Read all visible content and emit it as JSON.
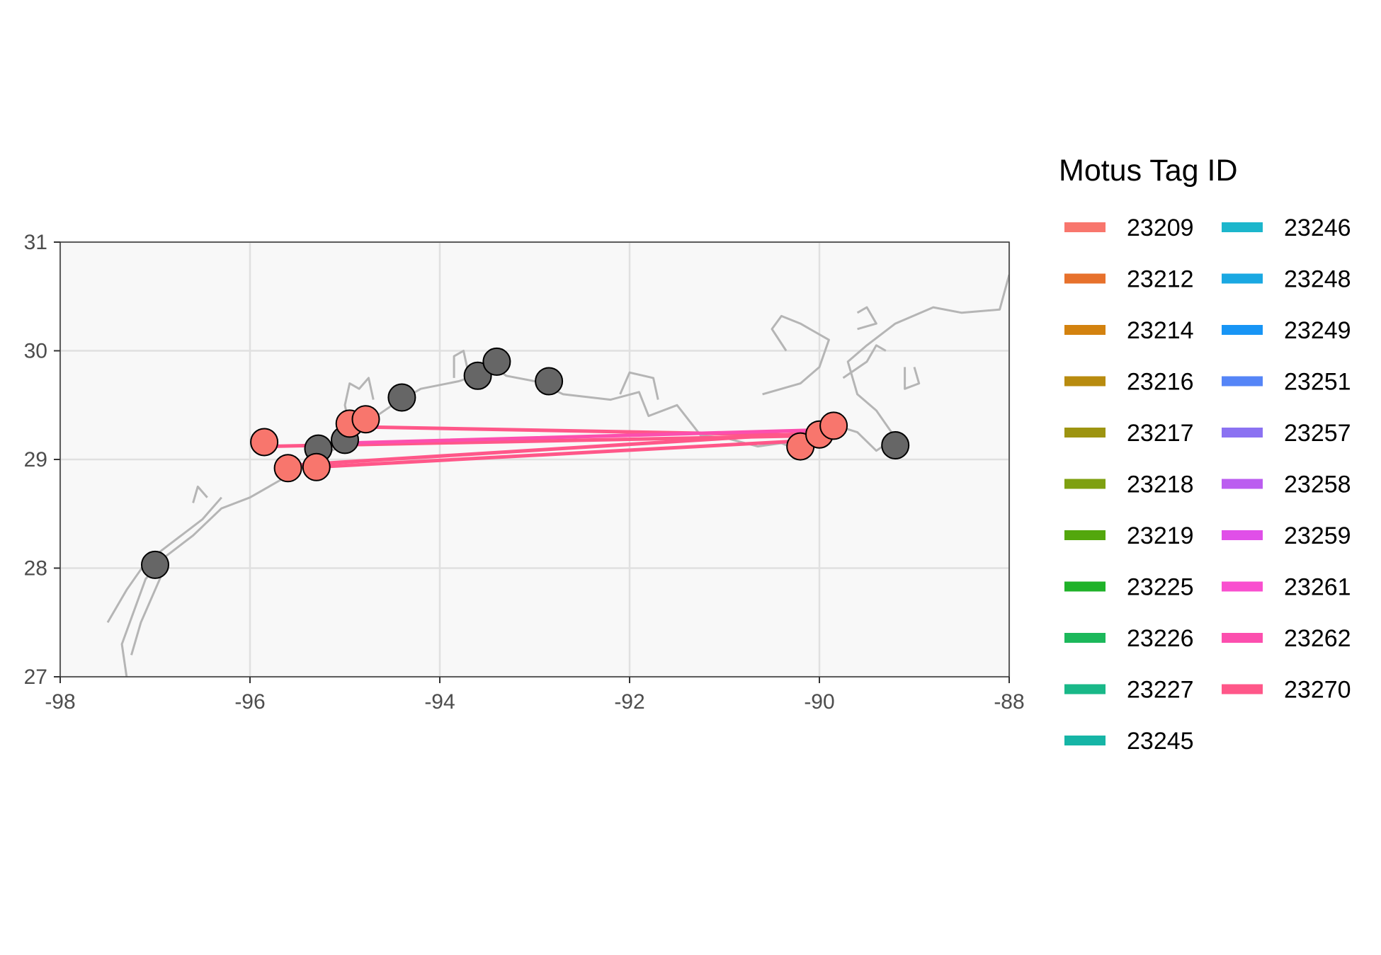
{
  "chart_data": {
    "type": "map",
    "xlim": [
      -98,
      -88
    ],
    "ylim": [
      27,
      31
    ],
    "x_ticks": [
      "-98",
      "-96",
      "-94",
      "-92",
      "-90",
      "-88"
    ],
    "y_ticks": [
      "27",
      "28",
      "29",
      "30",
      "31"
    ],
    "x_tick_values": [
      -98,
      -96,
      -94,
      -92,
      -90,
      -88
    ],
    "y_tick_values": [
      27,
      28,
      29,
      30,
      31
    ],
    "grid": true,
    "legend_position": "right",
    "colors": {
      "panel_background": "#f8f8f8",
      "gridline": "#e0e0e0",
      "coastline": "#b5b5b5",
      "station": "#666666",
      "detection": "#f8766d",
      "track": "#ff5789"
    },
    "coastline": [
      [
        [
          -97.3,
          26.0
        ],
        [
          -97.25,
          26.6
        ],
        [
          -97.3,
          27.0
        ],
        [
          -97.35,
          27.3
        ],
        [
          -97.1,
          27.9
        ],
        [
          -96.9,
          28.1
        ],
        [
          -96.6,
          28.3
        ],
        [
          -96.3,
          28.55
        ],
        [
          -96.0,
          28.65
        ],
        [
          -95.6,
          28.85
        ],
        [
          -95.3,
          29.0
        ],
        [
          -95.0,
          29.15
        ],
        [
          -94.75,
          29.35
        ],
        [
          -94.5,
          29.5
        ],
        [
          -94.2,
          29.65
        ],
        [
          -93.8,
          29.72
        ],
        [
          -93.6,
          29.78
        ],
        [
          -93.5,
          29.9
        ],
        [
          -93.3,
          29.77
        ],
        [
          -93.0,
          29.72
        ],
        [
          -92.7,
          29.6
        ],
        [
          -92.2,
          29.55
        ],
        [
          -91.9,
          29.62
        ],
        [
          -91.8,
          29.4
        ],
        [
          -91.5,
          29.5
        ],
        [
          -91.25,
          29.22
        ],
        [
          -91.0,
          29.2
        ],
        [
          -90.65,
          29.12
        ],
        [
          -90.4,
          29.15
        ],
        [
          -90.2,
          29.08
        ],
        [
          -90.05,
          29.28
        ],
        [
          -89.85,
          29.32
        ],
        [
          -89.6,
          29.25
        ],
        [
          -89.4,
          29.08
        ],
        [
          -89.2,
          29.2
        ],
        [
          -89.4,
          29.45
        ],
        [
          -89.6,
          29.6
        ],
        [
          -89.7,
          29.9
        ],
        [
          -89.5,
          30.05
        ],
        [
          -89.2,
          30.25
        ],
        [
          -88.8,
          30.4
        ],
        [
          -88.5,
          30.35
        ],
        [
          -88.1,
          30.38
        ],
        [
          -88.0,
          30.7
        ]
      ],
      [
        [
          -97.5,
          27.5
        ],
        [
          -97.3,
          27.8
        ],
        [
          -97.1,
          28.05
        ],
        [
          -96.8,
          28.25
        ],
        [
          -96.5,
          28.45
        ],
        [
          -96.3,
          28.65
        ]
      ],
      [
        [
          -97.25,
          27.2
        ],
        [
          -97.15,
          27.5
        ],
        [
          -97.0,
          27.8
        ],
        [
          -96.9,
          28.0
        ]
      ],
      [
        [
          -96.6,
          28.6
        ],
        [
          -96.55,
          28.75
        ],
        [
          -96.45,
          28.65
        ]
      ],
      [
        [
          -95.2,
          29.05
        ],
        [
          -95.05,
          29.2
        ],
        [
          -94.95,
          29.3
        ],
        [
          -95.0,
          29.5
        ],
        [
          -94.95,
          29.7
        ],
        [
          -94.85,
          29.65
        ],
        [
          -94.75,
          29.75
        ],
        [
          -94.7,
          29.55
        ]
      ],
      [
        [
          -93.85,
          29.75
        ],
        [
          -93.85,
          29.95
        ],
        [
          -93.75,
          30.0
        ],
        [
          -93.7,
          29.8
        ]
      ],
      [
        [
          -92.1,
          29.6
        ],
        [
          -92.0,
          29.8
        ],
        [
          -91.75,
          29.75
        ],
        [
          -91.7,
          29.55
        ]
      ],
      [
        [
          -90.6,
          29.6
        ],
        [
          -90.2,
          29.7
        ],
        [
          -90.0,
          29.85
        ],
        [
          -89.9,
          30.1
        ],
        [
          -90.2,
          30.25
        ],
        [
          -90.4,
          30.32
        ],
        [
          -90.5,
          30.2
        ],
        [
          -90.35,
          30.0
        ]
      ],
      [
        [
          -89.75,
          29.75
        ],
        [
          -89.5,
          29.9
        ],
        [
          -89.4,
          30.05
        ],
        [
          -89.3,
          30.0
        ]
      ],
      [
        [
          -89.0,
          29.85
        ],
        [
          -88.95,
          29.7
        ],
        [
          -89.1,
          29.65
        ],
        [
          -89.1,
          29.85
        ]
      ],
      [
        [
          -89.6,
          30.2
        ],
        [
          -89.4,
          30.25
        ],
        [
          -89.5,
          30.4
        ],
        [
          -89.6,
          30.35
        ]
      ]
    ],
    "stations": [
      {
        "lon": -97.0,
        "lat": 28.03
      },
      {
        "lon": -95.28,
        "lat": 29.1
      },
      {
        "lon": -95.0,
        "lat": 29.18
      },
      {
        "lon": -94.4,
        "lat": 29.57
      },
      {
        "lon": -93.6,
        "lat": 29.77
      },
      {
        "lon": -93.4,
        "lat": 29.9
      },
      {
        "lon": -92.85,
        "lat": 29.72
      },
      {
        "lon": -89.2,
        "lat": 29.13
      }
    ],
    "detections": [
      {
        "lon": -95.85,
        "lat": 29.16
      },
      {
        "lon": -95.6,
        "lat": 28.92
      },
      {
        "lon": -95.3,
        "lat": 28.93
      },
      {
        "lon": -94.95,
        "lat": 29.33
      },
      {
        "lon": -94.78,
        "lat": 29.37
      },
      {
        "lon": -90.2,
        "lat": 29.12
      },
      {
        "lon": -90.0,
        "lat": 29.23
      },
      {
        "lon": -89.85,
        "lat": 29.31
      }
    ],
    "tracks": [
      {
        "tag": "23270",
        "points": [
          [
            -95.85,
            29.12
          ],
          [
            -90.0,
            29.22
          ]
        ]
      },
      {
        "tag": "23270",
        "points": [
          [
            -95.5,
            28.95
          ],
          [
            -89.95,
            29.25
          ]
        ]
      },
      {
        "tag": "23270",
        "points": [
          [
            -95.3,
            28.93
          ],
          [
            -90.0,
            29.18
          ]
        ]
      },
      {
        "tag": "23270",
        "points": [
          [
            -94.9,
            29.3
          ],
          [
            -89.95,
            29.22
          ]
        ]
      },
      {
        "tag": "23262",
        "points": [
          [
            -95.0,
            29.15
          ],
          [
            -90.05,
            29.27
          ]
        ]
      },
      {
        "tag": "23257",
        "points": [
          [
            -90.2,
            29.12
          ],
          [
            -89.9,
            29.3
          ]
        ]
      },
      {
        "tag": "23258",
        "points": [
          [
            -90.1,
            29.15
          ],
          [
            -89.95,
            29.27
          ]
        ]
      }
    ]
  },
  "legend": {
    "title": "Motus Tag ID",
    "items": [
      {
        "label": "23209",
        "color": "#f8766d"
      },
      {
        "label": "23212",
        "color": "#e7712c"
      },
      {
        "label": "23214",
        "color": "#d3820f"
      },
      {
        "label": "23216",
        "color": "#b88b0f"
      },
      {
        "label": "23217",
        "color": "#9d9410"
      },
      {
        "label": "23218",
        "color": "#7ea010"
      },
      {
        "label": "23219",
        "color": "#53a70d"
      },
      {
        "label": "23225",
        "color": "#1fb229"
      },
      {
        "label": "23226",
        "color": "#1cb85b"
      },
      {
        "label": "23227",
        "color": "#19b888"
      },
      {
        "label": "23245",
        "color": "#16b5a6"
      },
      {
        "label": "23246",
        "color": "#1cb6cc"
      },
      {
        "label": "23248",
        "color": "#1aa8e2"
      },
      {
        "label": "23249",
        "color": "#1895f5"
      },
      {
        "label": "23251",
        "color": "#5585f7"
      },
      {
        "label": "23257",
        "color": "#8b72f2"
      },
      {
        "label": "23258",
        "color": "#bb5df0"
      },
      {
        "label": "23259",
        "color": "#e04fe8"
      },
      {
        "label": "23261",
        "color": "#f94fcf"
      },
      {
        "label": "23262",
        "color": "#fc4fae"
      },
      {
        "label": "23270",
        "color": "#ff5789"
      }
    ]
  }
}
